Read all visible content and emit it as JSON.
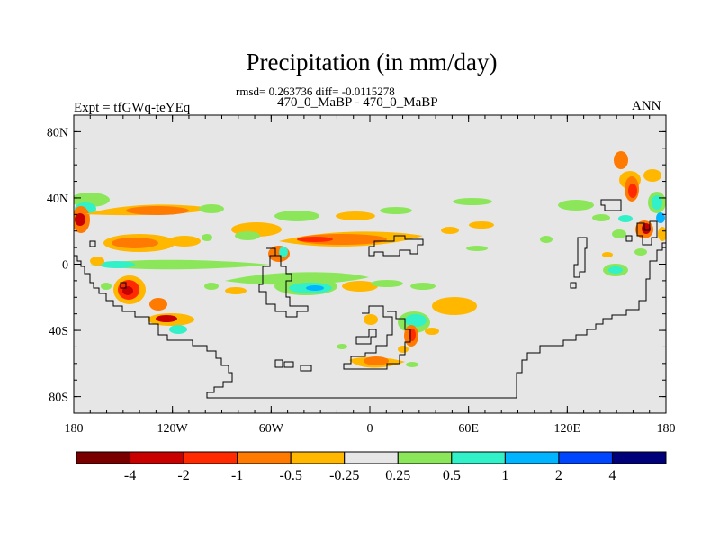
{
  "title": "Precipitation (in mm/day)",
  "stats_line": "rmsd= 0.263736 diff= -0.0115278",
  "expt_label": "Expt = tfGWq-teYEq",
  "case_label": "470_0_MaBP - 470_0_MaBP",
  "season_label": "ANN",
  "axes": {
    "lat_ticks": [
      {
        "value": 80,
        "label": "80N"
      },
      {
        "value": 40,
        "label": "40N"
      },
      {
        "value": 0,
        "label": "0"
      },
      {
        "value": -40,
        "label": "40S"
      },
      {
        "value": -80,
        "label": "80S"
      }
    ],
    "lon_ticks": [
      {
        "value": -180,
        "label": "180"
      },
      {
        "value": -120,
        "label": "120W"
      },
      {
        "value": -60,
        "label": "60W"
      },
      {
        "value": 0,
        "label": "0"
      },
      {
        "value": 60,
        "label": "60E"
      },
      {
        "value": 120,
        "label": "120E"
      },
      {
        "value": 180,
        "label": "180"
      }
    ],
    "lon_range": [
      -180,
      180
    ],
    "lat_range": [
      -90,
      90
    ]
  },
  "colorbar": {
    "colors": [
      "#7a0000",
      "#c80000",
      "#ff2a00",
      "#ff7a00",
      "#ffb700",
      "#e6e6e6",
      "#8ce65a",
      "#32f0c8",
      "#00b4ff",
      "#0046ff",
      "#00007a"
    ],
    "labels": [
      "-4",
      "-2",
      "-1",
      "-0.5",
      "-0.25",
      "0.25",
      "0.5",
      "1",
      "2",
      "4"
    ]
  },
  "colors": {
    "background": "#e6e6e6",
    "coast": "#000000"
  },
  "chart_data": {
    "type": "heatmap",
    "title": "Precipitation (in mm/day)",
    "subtitle": "470_0_MaBP - 470_0_MaBP",
    "units": "mm/day",
    "rmsd": 0.263736,
    "diff": -0.0115278,
    "levels": [
      -4,
      -2,
      -1,
      -0.5,
      -0.25,
      0.25,
      0.5,
      1,
      2,
      4
    ],
    "xlim": [
      -180,
      180
    ],
    "ylim": [
      -90,
      90
    ],
    "anomalies": [
      {
        "lon": -172,
        "lat": 38,
        "level": 0.5
      },
      {
        "lon": -175,
        "lat": 31,
        "level": -1
      },
      {
        "lon": -176,
        "lat": 28,
        "level": -2
      },
      {
        "lon": -143,
        "lat": 32,
        "level": -0.25
      },
      {
        "lon": -120,
        "lat": 39,
        "level": 0.5
      },
      {
        "lon": -165,
        "lat": 16,
        "level": -0.25
      },
      {
        "lon": -148,
        "lat": 14,
        "level": -0.5
      },
      {
        "lon": -145,
        "lat": 3,
        "level": 0.5
      },
      {
        "lon": -158,
        "lat": 0,
        "level": 1
      },
      {
        "lon": -148,
        "lat": -16,
        "level": -0.5
      },
      {
        "lon": -145,
        "lat": -15,
        "level": -2
      },
      {
        "lon": -130,
        "lat": -24,
        "level": -0.5
      },
      {
        "lon": -124,
        "lat": -31,
        "level": -2
      },
      {
        "lon": -110,
        "lat": -32,
        "level": -0.5
      },
      {
        "lon": -85,
        "lat": 13,
        "level": -0.25
      },
      {
        "lon": -48,
        "lat": 12,
        "level": 0.5
      },
      {
        "lon": -42,
        "lat": 11,
        "level": 1
      },
      {
        "lon": -18,
        "lat": 13,
        "level": -0.5
      },
      {
        "lon": 12,
        "lat": 15,
        "level": -0.5
      },
      {
        "lon": -18,
        "lat": -15,
        "level": 1
      },
      {
        "lon": -10,
        "lat": -14,
        "level": 2
      },
      {
        "lon": 18,
        "lat": -14,
        "level": 0.5
      },
      {
        "lon": 8,
        "lat": -55,
        "level": -0.25
      },
      {
        "lon": 30,
        "lat": -42,
        "level": -1
      },
      {
        "lon": 28,
        "lat": -38,
        "level": 1
      },
      {
        "lon": 52,
        "lat": -26,
        "level": -0.25
      },
      {
        "lon": 65,
        "lat": 33,
        "level": 0.5
      },
      {
        "lon": 105,
        "lat": 36,
        "level": 0.5
      },
      {
        "lon": 150,
        "lat": 37,
        "level": 0.5
      },
      {
        "lon": 158,
        "lat": 45,
        "level": -0.5
      },
      {
        "lon": 163,
        "lat": 50,
        "level": -1
      },
      {
        "lon": 170,
        "lat": 38,
        "level": 1
      },
      {
        "lon": 174,
        "lat": 35,
        "level": 2
      },
      {
        "lon": 170,
        "lat": 20,
        "level": -1
      },
      {
        "lon": 167,
        "lat": 23,
        "level": -2
      },
      {
        "lon": 150,
        "lat": -5,
        "level": 1
      }
    ]
  }
}
